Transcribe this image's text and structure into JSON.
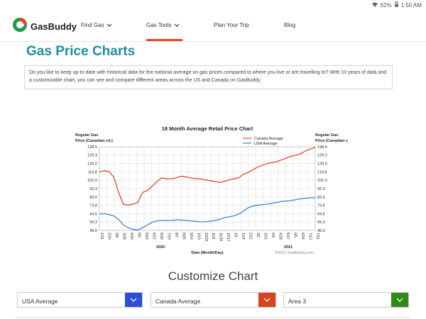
{
  "status_bar": {
    "battery": "62%",
    "time": "1:50 AM"
  },
  "nav": {
    "brand": "GasBuddy",
    "items": [
      {
        "label": "Find Gas"
      },
      {
        "label": "Gas Tools"
      },
      {
        "label": "Plan Your Trip"
      },
      {
        "label": "Blog"
      }
    ]
  },
  "page": {
    "title": "Gas Price Charts",
    "intro": "Do you like to keep up-to-date with historical data for the national average on gas prices compared to where you live or are travelling to? With 10 years of data and a customizable chart, you can see and compare different areas across the US and Canada on GasBuddy."
  },
  "customize": {
    "heading": "Customize Chart",
    "selects": [
      {
        "value": "USA Average",
        "button_color": "#2a4fd6"
      },
      {
        "value": "Canada Average",
        "button_color": "#d9431f"
      },
      {
        "value": "Area 3",
        "button_color": "#2f8a16"
      }
    ]
  },
  "chart_data": {
    "type": "line",
    "title": "18 Month Average Retail Price Chart",
    "ylabel_left": "Regular Gas\nPrice (Canadian c/L)",
    "ylabel_right": "Regular Gas\nPrice (Canadian c",
    "xlabel": "Date (Month/Day)",
    "credit": "©2021 GasBuddy.com",
    "years": [
      "2020",
      "2021"
    ],
    "ylim": [
      46.0,
      138.5
    ],
    "yticks": [
      "138.5",
      "129.3",
      "120.0",
      "110.8",
      "101.5",
      "92.3",
      "83.0",
      "73.8",
      "64.5",
      "55.3",
      "46.0"
    ],
    "x_labels": [
      "1/31",
      "2/19",
      "3/8",
      "3/28",
      "4/16",
      "5/5",
      "5/24",
      "6/12",
      "6/30",
      "7/19",
      "8/7",
      "8/26",
      "9/14",
      "10/3",
      "10/22",
      "11/9",
      "11/28",
      "12/17",
      "1/5",
      "1/24",
      "2/12",
      "3/2",
      "3/21",
      "4/9",
      "4/28",
      "5/17",
      "6/5",
      "6/24",
      "7/13",
      "7/31"
    ],
    "legend": [
      {
        "name": "Canada Average",
        "color": "#e04a2a"
      },
      {
        "name": "USA Average",
        "color": "#3a86d6"
      }
    ],
    "series": [
      {
        "name": "Canada Average",
        "values": [
          110.5,
          112,
          111,
          105,
          88,
          75,
          74,
          75,
          77,
          88,
          90,
          95,
          100,
          104,
          103,
          103,
          104,
          106,
          105,
          104,
          103,
          103,
          102,
          101,
          100,
          99,
          100,
          102,
          103,
          104,
          108,
          110,
          113,
          116,
          118,
          120,
          121,
          122,
          124,
          126,
          128,
          129,
          131,
          134,
          136,
          138
        ]
      },
      {
        "name": "USA Average",
        "values": [
          64,
          64.5,
          63.5,
          62,
          58,
          52,
          49,
          47,
          46.5,
          49,
          52,
          55,
          56.5,
          57,
          57,
          57,
          57.5,
          57.5,
          57,
          56.5,
          56,
          55.5,
          55.5,
          56,
          57,
          58,
          60,
          61,
          62,
          64,
          67,
          71,
          73,
          74,
          74.5,
          75,
          76,
          77,
          78,
          78.5,
          79,
          80,
          81,
          81.5,
          82,
          82
        ]
      }
    ]
  }
}
